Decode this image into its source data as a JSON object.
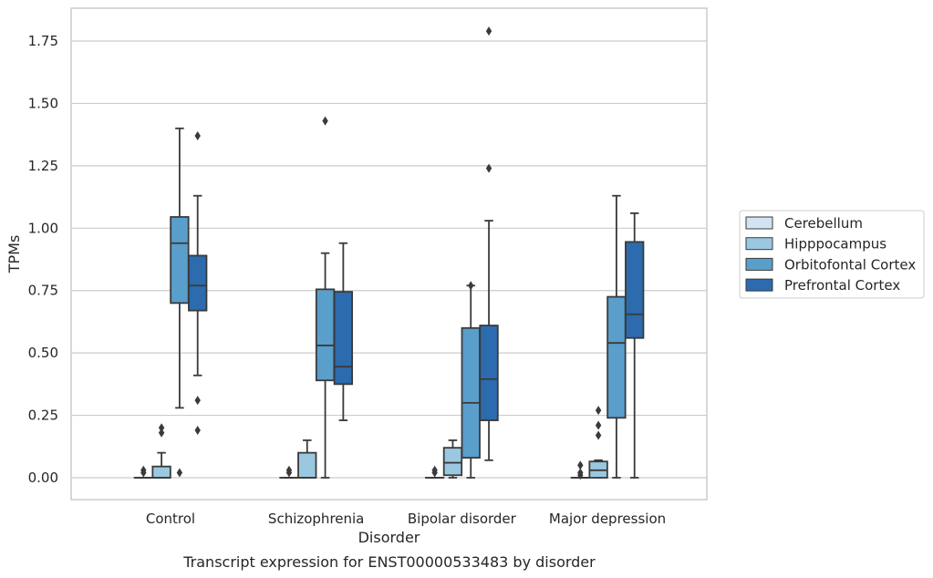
{
  "chart_data": {
    "type": "boxplot",
    "title": "",
    "caption": "Transcript expression for ENST00000533483 by disorder",
    "xlabel": "Disorder",
    "ylabel": "TPMs",
    "ylim": [
      -0.085,
      1.845
    ],
    "yticks": [
      0.0,
      0.25,
      0.5,
      0.75,
      1.0,
      1.25,
      1.5,
      1.75
    ],
    "ytick_labels": [
      "0.00",
      "0.25",
      "0.50",
      "0.75",
      "1.00",
      "1.25",
      "1.50",
      "1.75"
    ],
    "grid": "horizontal",
    "legend_placement": "right, outside",
    "categories": [
      "Control",
      "Schizophrenia",
      "Bipolar disorder",
      "Major depression"
    ],
    "series": [
      {
        "name": "Cerebellum",
        "color": "#d2e3f3",
        "boxes": [
          {
            "whislo": 0,
            "q1": 0,
            "med": 0,
            "q3": 0,
            "whishi": 0,
            "fliers": [
              0.02,
              0.03
            ]
          },
          {
            "whislo": 0,
            "q1": 0,
            "med": 0,
            "q3": 0,
            "whishi": 0,
            "fliers": [
              0.02,
              0.03
            ]
          },
          {
            "whislo": 0,
            "q1": 0,
            "med": 0,
            "q3": 0,
            "whishi": 0,
            "fliers": [
              0.02,
              0.03
            ]
          },
          {
            "whislo": 0,
            "q1": 0,
            "med": 0,
            "q3": 0,
            "whishi": 0,
            "fliers": [
              0.01,
              0.02,
              0.05
            ]
          }
        ]
      },
      {
        "name": "Hipppocampus",
        "color": "#9ac8e0",
        "boxes": [
          {
            "whislo": 0,
            "q1": 0,
            "med": 0,
            "q3": 0.045,
            "whishi": 0.1,
            "fliers": [
              0.18,
              0.2
            ]
          },
          {
            "whislo": 0,
            "q1": 0,
            "med": 0,
            "q3": 0.1,
            "whishi": 0.15,
            "fliers": []
          },
          {
            "whislo": 0,
            "q1": 0.01,
            "med": 0.06,
            "q3": 0.12,
            "whishi": 0.15,
            "fliers": []
          },
          {
            "whislo": 0,
            "q1": 0,
            "med": 0.03,
            "q3": 0.065,
            "whishi": 0.07,
            "fliers": [
              0.17,
              0.21,
              0.27
            ]
          }
        ]
      },
      {
        "name": "Orbitofontal Cortex",
        "color": "#5a9ecb",
        "boxes": [
          {
            "whislo": 0.28,
            "q1": 0.7,
            "med": 0.94,
            "q3": 1.045,
            "whishi": 1.4,
            "fliers": [
              0.02
            ]
          },
          {
            "whislo": 0,
            "q1": 0.39,
            "med": 0.53,
            "q3": 0.755,
            "whishi": 0.9,
            "fliers": [
              1.43
            ]
          },
          {
            "whislo": 0,
            "q1": 0.08,
            "med": 0.3,
            "q3": 0.6,
            "whishi": 0.77,
            "fliers": [
              0.77
            ]
          },
          {
            "whislo": 0,
            "q1": 0.24,
            "med": 0.54,
            "q3": 0.725,
            "whishi": 1.13,
            "fliers": []
          }
        ]
      },
      {
        "name": "Prefrontal Cortex",
        "color": "#2c6bad",
        "boxes": [
          {
            "whislo": 0.41,
            "q1": 0.67,
            "med": 0.77,
            "q3": 0.89,
            "whishi": 1.13,
            "fliers": [
              0.19,
              0.31,
              1.37
            ]
          },
          {
            "whislo": 0.23,
            "q1": 0.375,
            "med": 0.445,
            "q3": 0.745,
            "whishi": 0.94,
            "fliers": []
          },
          {
            "whislo": 0.07,
            "q1": 0.23,
            "med": 0.395,
            "q3": 0.61,
            "whishi": 1.03,
            "fliers": [
              1.24,
              1.79
            ]
          },
          {
            "whislo": 0,
            "q1": 0.56,
            "med": 0.655,
            "q3": 0.945,
            "whishi": 1.06,
            "fliers": []
          }
        ]
      }
    ]
  }
}
